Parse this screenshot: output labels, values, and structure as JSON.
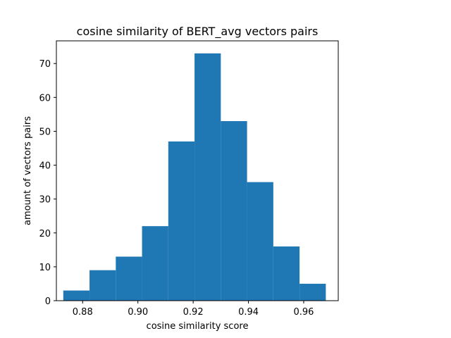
{
  "chart_data": {
    "type": "bar",
    "title": "cosine similarity of BERT_avg vectors pairs",
    "xlabel": "cosine similarity score",
    "ylabel": "amount of vectors pairs",
    "xlim": [
      0.8705,
      0.9725
    ],
    "ylim": [
      0,
      76.7
    ],
    "xticks": [
      0.88,
      0.9,
      0.92,
      0.94,
      0.96
    ],
    "xtick_labels": [
      "0.88",
      "0.90",
      "0.92",
      "0.94",
      "0.96"
    ],
    "yticks": [
      0,
      10,
      20,
      30,
      40,
      50,
      60,
      70
    ],
    "ytick_labels": [
      "0",
      "10",
      "20",
      "30",
      "40",
      "50",
      "60",
      "70"
    ],
    "bin_edges": [
      0.873,
      0.8825,
      0.892,
      0.9015,
      0.911,
      0.9205,
      0.93,
      0.9395,
      0.949,
      0.9585,
      0.968
    ],
    "values": [
      3,
      9,
      13,
      22,
      47,
      73,
      53,
      35,
      16,
      5
    ],
    "grid": false,
    "color": "#1f77b4"
  }
}
